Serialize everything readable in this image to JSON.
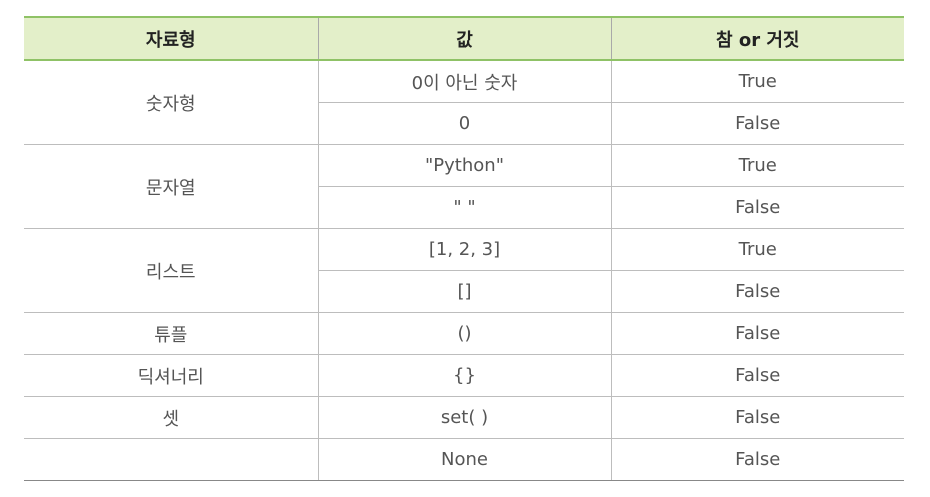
{
  "table": {
    "headers": [
      "자료형",
      "값",
      "참 or 거짓"
    ],
    "groups": [
      {
        "type": "숫자형",
        "rows": [
          {
            "value": "0이 아닌 숫자",
            "truth": "True"
          },
          {
            "value": "0",
            "truth": "False"
          }
        ]
      },
      {
        "type": "문자열",
        "rows": [
          {
            "value": "\"Python\"",
            "truth": "True"
          },
          {
            "value": "\" \"",
            "truth": "False"
          }
        ]
      },
      {
        "type": "리스트",
        "rows": [
          {
            "value": "[1, 2, 3]",
            "truth": "True"
          },
          {
            "value": "[]",
            "truth": "False"
          }
        ]
      },
      {
        "type": "튜플",
        "rows": [
          {
            "value": "()",
            "truth": "False"
          }
        ]
      },
      {
        "type": "딕셔너리",
        "rows": [
          {
            "value": "{}",
            "truth": "False"
          }
        ]
      },
      {
        "type": "셋",
        "rows": [
          {
            "value": "set( )",
            "truth": "False"
          }
        ]
      },
      {
        "type": "",
        "rows": [
          {
            "value": "None",
            "truth": "False"
          }
        ]
      }
    ]
  }
}
